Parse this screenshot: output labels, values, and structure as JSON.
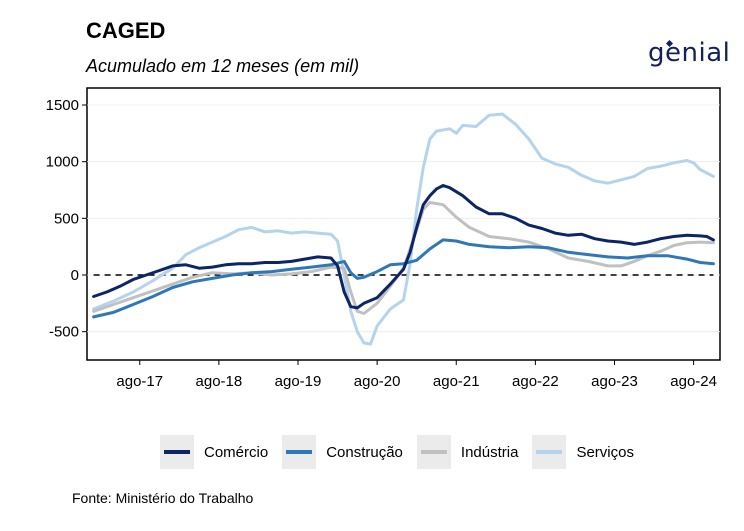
{
  "header": {
    "title": "CAGED",
    "subtitle": "Acumulado em 12 meses (em mil)"
  },
  "logo": {
    "text": "genial",
    "color": "#13205c"
  },
  "footer": {
    "source": "Fonte: Ministério do Trabalho"
  },
  "chart_data": {
    "type": "line",
    "x_ticks": [
      "ago-17",
      "ago-18",
      "ago-19",
      "ago-20",
      "ago-21",
      "ago-22",
      "ago-23",
      "ago-24"
    ],
    "x_range": [
      "2016-12",
      "2024-12"
    ],
    "ylim": [
      -750,
      1650
    ],
    "y_ticks": [
      -500,
      0,
      500,
      1000,
      1500
    ],
    "y_tick_labels": [
      "-500",
      "0",
      "500",
      "1000",
      "1500"
    ],
    "reference_line": {
      "y": 0,
      "style": "dashed"
    },
    "legend_position": "bottom",
    "series": [
      {
        "name": "Comércio",
        "color": "#0b2566",
        "points": [
          [
            "2017-01",
            -190
          ],
          [
            "2017-03",
            -150
          ],
          [
            "2017-05",
            -100
          ],
          [
            "2017-07",
            -40
          ],
          [
            "2017-09",
            0
          ],
          [
            "2017-11",
            40
          ],
          [
            "2018-01",
            80
          ],
          [
            "2018-03",
            90
          ],
          [
            "2018-05",
            60
          ],
          [
            "2018-07",
            70
          ],
          [
            "2018-09",
            90
          ],
          [
            "2018-11",
            100
          ],
          [
            "2019-01",
            100
          ],
          [
            "2019-03",
            110
          ],
          [
            "2019-05",
            110
          ],
          [
            "2019-07",
            120
          ],
          [
            "2019-09",
            140
          ],
          [
            "2019-11",
            160
          ],
          [
            "2020-01",
            150
          ],
          [
            "2020-02",
            80
          ],
          [
            "2020-03",
            -150
          ],
          [
            "2020-04",
            -280
          ],
          [
            "2020-05",
            -290
          ],
          [
            "2020-06",
            -250
          ],
          [
            "2020-08",
            -200
          ],
          [
            "2020-10",
            -80
          ],
          [
            "2020-12",
            50
          ],
          [
            "2021-01",
            200
          ],
          [
            "2021-02",
            420
          ],
          [
            "2021-03",
            620
          ],
          [
            "2021-04",
            700
          ],
          [
            "2021-05",
            760
          ],
          [
            "2021-06",
            790
          ],
          [
            "2021-07",
            770
          ],
          [
            "2021-09",
            700
          ],
          [
            "2021-11",
            600
          ],
          [
            "2022-01",
            540
          ],
          [
            "2022-03",
            540
          ],
          [
            "2022-05",
            500
          ],
          [
            "2022-07",
            440
          ],
          [
            "2022-09",
            410
          ],
          [
            "2022-11",
            370
          ],
          [
            "2023-01",
            350
          ],
          [
            "2023-03",
            360
          ],
          [
            "2023-05",
            320
          ],
          [
            "2023-07",
            300
          ],
          [
            "2023-09",
            290
          ],
          [
            "2023-11",
            270
          ],
          [
            "2024-01",
            290
          ],
          [
            "2024-03",
            320
          ],
          [
            "2024-05",
            340
          ],
          [
            "2024-07",
            350
          ],
          [
            "2024-09",
            345
          ],
          [
            "2024-10",
            340
          ],
          [
            "2024-11",
            310
          ]
        ]
      },
      {
        "name": "Construção",
        "color": "#2e78b8",
        "points": [
          [
            "2017-01",
            -370
          ],
          [
            "2017-04",
            -330
          ],
          [
            "2017-07",
            -260
          ],
          [
            "2017-10",
            -190
          ],
          [
            "2018-01",
            -110
          ],
          [
            "2018-04",
            -60
          ],
          [
            "2018-07",
            -30
          ],
          [
            "2018-10",
            0
          ],
          [
            "2019-01",
            20
          ],
          [
            "2019-04",
            30
          ],
          [
            "2019-07",
            50
          ],
          [
            "2019-10",
            70
          ],
          [
            "2020-01",
            90
          ],
          [
            "2020-03",
            120
          ],
          [
            "2020-04",
            20
          ],
          [
            "2020-05",
            -30
          ],
          [
            "2020-06",
            -20
          ],
          [
            "2020-08",
            30
          ],
          [
            "2020-10",
            90
          ],
          [
            "2020-12",
            100
          ],
          [
            "2021-02",
            130
          ],
          [
            "2021-04",
            230
          ],
          [
            "2021-06",
            310
          ],
          [
            "2021-08",
            300
          ],
          [
            "2021-10",
            270
          ],
          [
            "2022-01",
            250
          ],
          [
            "2022-04",
            240
          ],
          [
            "2022-07",
            250
          ],
          [
            "2022-10",
            240
          ],
          [
            "2023-01",
            200
          ],
          [
            "2023-04",
            180
          ],
          [
            "2023-07",
            160
          ],
          [
            "2023-10",
            150
          ],
          [
            "2024-01",
            170
          ],
          [
            "2024-04",
            170
          ],
          [
            "2024-07",
            140
          ],
          [
            "2024-09",
            110
          ],
          [
            "2024-11",
            100
          ]
        ]
      },
      {
        "name": "Indústria",
        "color": "#c0c0c0",
        "points": [
          [
            "2017-01",
            -320
          ],
          [
            "2017-04",
            -260
          ],
          [
            "2017-07",
            -200
          ],
          [
            "2017-10",
            -140
          ],
          [
            "2018-01",
            -80
          ],
          [
            "2018-04",
            -20
          ],
          [
            "2018-07",
            20
          ],
          [
            "2018-10",
            10
          ],
          [
            "2019-01",
            20
          ],
          [
            "2019-04",
            0
          ],
          [
            "2019-07",
            10
          ],
          [
            "2019-10",
            30
          ],
          [
            "2020-01",
            70
          ],
          [
            "2020-03",
            60
          ],
          [
            "2020-04",
            -150
          ],
          [
            "2020-05",
            -320
          ],
          [
            "2020-06",
            -340
          ],
          [
            "2020-08",
            -250
          ],
          [
            "2020-10",
            -100
          ],
          [
            "2020-12",
            60
          ],
          [
            "2021-02",
            400
          ],
          [
            "2021-03",
            580
          ],
          [
            "2021-04",
            640
          ],
          [
            "2021-06",
            620
          ],
          [
            "2021-08",
            510
          ],
          [
            "2021-10",
            420
          ],
          [
            "2022-01",
            340
          ],
          [
            "2022-04",
            320
          ],
          [
            "2022-07",
            290
          ],
          [
            "2022-10",
            230
          ],
          [
            "2023-01",
            150
          ],
          [
            "2023-04",
            120
          ],
          [
            "2023-07",
            80
          ],
          [
            "2023-09",
            80
          ],
          [
            "2023-11",
            120
          ],
          [
            "2024-01",
            170
          ],
          [
            "2024-03",
            210
          ],
          [
            "2024-05",
            260
          ],
          [
            "2024-07",
            285
          ],
          [
            "2024-09",
            290
          ],
          [
            "2024-11",
            285
          ]
        ]
      },
      {
        "name": "Serviços",
        "color": "#b5d3ec",
        "points": [
          [
            "2017-01",
            -300
          ],
          [
            "2017-04",
            -230
          ],
          [
            "2017-07",
            -150
          ],
          [
            "2017-10",
            -50
          ],
          [
            "2018-01",
            60
          ],
          [
            "2018-03",
            180
          ],
          [
            "2018-05",
            240
          ],
          [
            "2018-07",
            290
          ],
          [
            "2018-09",
            340
          ],
          [
            "2018-11",
            400
          ],
          [
            "2019-01",
            420
          ],
          [
            "2019-03",
            380
          ],
          [
            "2019-05",
            390
          ],
          [
            "2019-07",
            370
          ],
          [
            "2019-09",
            380
          ],
          [
            "2019-11",
            370
          ],
          [
            "2020-01",
            360
          ],
          [
            "2020-02",
            300
          ],
          [
            "2020-03",
            0
          ],
          [
            "2020-04",
            -320
          ],
          [
            "2020-05",
            -500
          ],
          [
            "2020-06",
            -600
          ],
          [
            "2020-07",
            -610
          ],
          [
            "2020-08",
            -450
          ],
          [
            "2020-10",
            -300
          ],
          [
            "2020-12",
            -220
          ],
          [
            "2021-01",
            100
          ],
          [
            "2021-02",
            580
          ],
          [
            "2021-03",
            950
          ],
          [
            "2021-04",
            1200
          ],
          [
            "2021-05",
            1270
          ],
          [
            "2021-07",
            1290
          ],
          [
            "2021-08",
            1250
          ],
          [
            "2021-09",
            1320
          ],
          [
            "2021-11",
            1310
          ],
          [
            "2022-01",
            1410
          ],
          [
            "2022-03",
            1420
          ],
          [
            "2022-05",
            1330
          ],
          [
            "2022-07",
            1200
          ],
          [
            "2022-09",
            1030
          ],
          [
            "2022-11",
            980
          ],
          [
            "2023-01",
            950
          ],
          [
            "2023-03",
            880
          ],
          [
            "2023-05",
            830
          ],
          [
            "2023-07",
            810
          ],
          [
            "2023-09",
            840
          ],
          [
            "2023-11",
            870
          ],
          [
            "2024-01",
            940
          ],
          [
            "2024-03",
            960
          ],
          [
            "2024-05",
            990
          ],
          [
            "2024-07",
            1010
          ],
          [
            "2024-08",
            990
          ],
          [
            "2024-09",
            930
          ],
          [
            "2024-10",
            900
          ],
          [
            "2024-11",
            870
          ]
        ]
      }
    ]
  }
}
